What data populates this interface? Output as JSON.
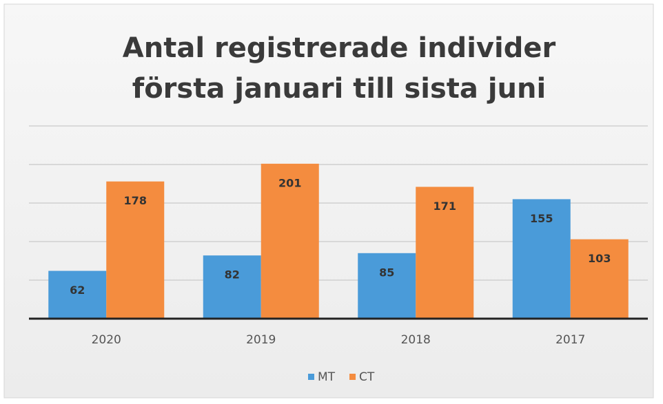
{
  "chart_data": {
    "type": "bar",
    "title": [
      "Antal registrerade individer",
      "första januari till sista juni"
    ],
    "categories": [
      "2020",
      "2019",
      "2018",
      "2017"
    ],
    "series": [
      {
        "name": "MT",
        "color": "#4a9bd9",
        "values": [
          62,
          82,
          85,
          155
        ]
      },
      {
        "name": "CT",
        "color": "#f48c3f",
        "values": [
          178,
          201,
          171,
          103
        ]
      }
    ],
    "ylim": [
      0,
      250
    ],
    "yticks": [
      0,
      50,
      100,
      150,
      200,
      250
    ],
    "grid": true,
    "legend": "bottom"
  }
}
